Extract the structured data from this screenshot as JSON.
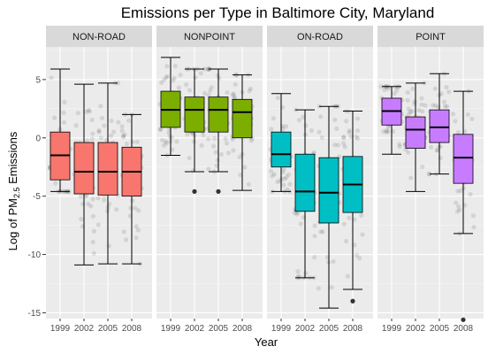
{
  "chart_data": {
    "type": "box",
    "title": "Emissions per Type in Baltimore City, Maryland",
    "xlabel": "Year",
    "ylabel": {
      "prefix": "Log of PM",
      "subscript": "2.5",
      "suffix": " Emissions"
    },
    "ylim": [
      -15.5,
      7.8
    ],
    "yticks": [
      5,
      0,
      -5,
      -10,
      -15
    ],
    "ytick_labels": [
      "5",
      "0",
      "-5",
      "-10",
      "-15"
    ],
    "categories": [
      "1999",
      "2002",
      "2005",
      "2008"
    ],
    "colors": {
      "1999": "#F8766D",
      "2002": "#7CAE00",
      "2005": "#00BFC4",
      "2008": "#C77CFF"
    },
    "panels": [
      {
        "name": "NON-ROAD",
        "fill": "#F8766D",
        "boxes": [
          {
            "year": "1999",
            "min": -4.6,
            "q1": -3.6,
            "median": -1.5,
            "q3": 0.5,
            "max": 5.9,
            "outliers": []
          },
          {
            "year": "2002",
            "min": -10.9,
            "q1": -4.8,
            "median": -2.9,
            "q3": -0.4,
            "max": 4.6,
            "outliers": []
          },
          {
            "year": "2005",
            "min": -10.8,
            "q1": -4.9,
            "median": -2.9,
            "q3": -0.4,
            "max": 4.7,
            "outliers": []
          },
          {
            "year": "2008",
            "min": -10.8,
            "q1": -5.0,
            "median": -2.9,
            "q3": -0.8,
            "max": 2.0,
            "outliers": []
          }
        ]
      },
      {
        "name": "NONPOINT",
        "fill": "#7CAE00",
        "boxes": [
          {
            "year": "1999",
            "min": -1.5,
            "q1": 0.9,
            "median": 2.4,
            "q3": 4.0,
            "max": 6.9,
            "outliers": []
          },
          {
            "year": "2002",
            "min": -2.9,
            "q1": 0.5,
            "median": 2.4,
            "q3": 3.5,
            "max": 5.9,
            "outliers": [
              -4.6
            ]
          },
          {
            "year": "2005",
            "min": -2.9,
            "q1": 0.5,
            "median": 2.4,
            "q3": 3.5,
            "max": 5.9,
            "outliers": [
              -4.6
            ]
          },
          {
            "year": "2008",
            "min": -4.5,
            "q1": 0.0,
            "median": 2.2,
            "q3": 3.3,
            "max": 5.4,
            "outliers": []
          }
        ]
      },
      {
        "name": "ON-ROAD",
        "fill": "#00BFC4",
        "boxes": [
          {
            "year": "1999",
            "min": -4.6,
            "q1": -2.5,
            "median": -1.4,
            "q3": 0.5,
            "max": 3.8,
            "outliers": []
          },
          {
            "year": "2002",
            "min": -12.0,
            "q1": -6.3,
            "median": -4.6,
            "q3": -1.4,
            "max": 2.4,
            "outliers": []
          },
          {
            "year": "2005",
            "min": -14.6,
            "q1": -7.3,
            "median": -4.7,
            "q3": -1.7,
            "max": 2.7,
            "outliers": []
          },
          {
            "year": "2008",
            "min": -13.0,
            "q1": -6.4,
            "median": -4.0,
            "q3": -1.6,
            "max": 2.3,
            "outliers": [
              -14.0
            ]
          }
        ]
      },
      {
        "name": "POINT",
        "fill": "#C77CFF",
        "boxes": [
          {
            "year": "1999",
            "min": -1.4,
            "q1": 1.1,
            "median": 2.3,
            "q3": 3.4,
            "max": 4.4,
            "outliers": []
          },
          {
            "year": "2002",
            "min": -4.6,
            "q1": -0.9,
            "median": 0.7,
            "q3": 1.8,
            "max": 4.7,
            "outliers": []
          },
          {
            "year": "2005",
            "min": -3.1,
            "q1": -0.4,
            "median": 0.9,
            "q3": 2.4,
            "max": 5.5,
            "outliers": []
          },
          {
            "year": "2008",
            "min": -8.2,
            "q1": -3.9,
            "median": -1.7,
            "q3": 0.3,
            "max": 4.0,
            "outliers": [
              -15.6
            ]
          }
        ]
      }
    ]
  }
}
